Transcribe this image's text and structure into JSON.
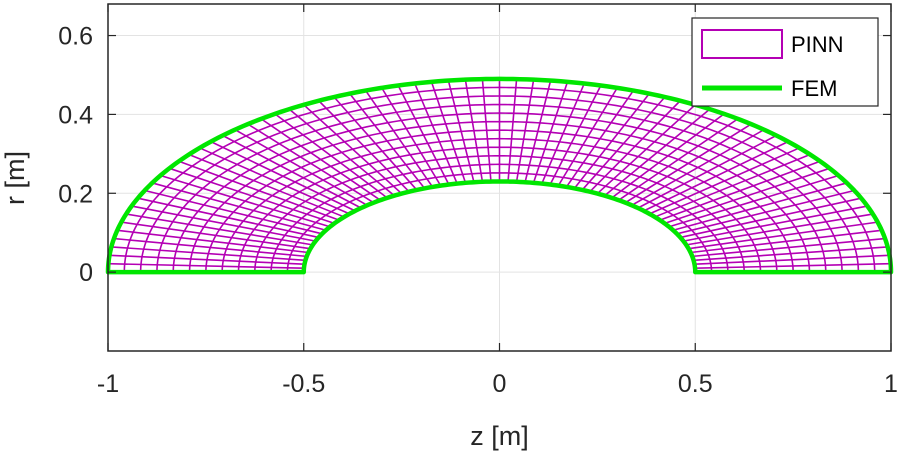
{
  "chart_data": {
    "type": "line",
    "xlabel": "z [m]",
    "ylabel": "r [m]",
    "xlim": [
      -1,
      1
    ],
    "ylim": [
      -0.2,
      0.68
    ],
    "xticks": [
      -1,
      -0.5,
      0,
      0.5,
      1
    ],
    "xtick_labels": [
      "-1",
      "-0.5",
      "0",
      "0.5",
      "1"
    ],
    "yticks": [
      0,
      0.2,
      0.4,
      0.6
    ],
    "ytick_labels": [
      "0",
      "0.2",
      "0.4",
      "0.6"
    ],
    "grid": true,
    "legend_position": "top-right",
    "series": [
      {
        "name": "PINN",
        "kind": "mesh",
        "color": "#b400b4",
        "geometry": {
          "shape": "half-elliptical-annulus",
          "inner": {
            "semi_z": 0.5,
            "semi_r": 0.23
          },
          "outer": {
            "semi_z": 1.0,
            "semi_r": 0.49
          },
          "radial_divisions": 12,
          "angular_divisions": 72
        }
      },
      {
        "name": "FEM",
        "kind": "boundary",
        "color": "#00e600",
        "geometry": {
          "shape": "half-elliptical-annulus",
          "inner": {
            "semi_z": 0.5,
            "semi_r": 0.23
          },
          "outer": {
            "semi_z": 1.0,
            "semi_r": 0.49
          }
        }
      }
    ]
  }
}
